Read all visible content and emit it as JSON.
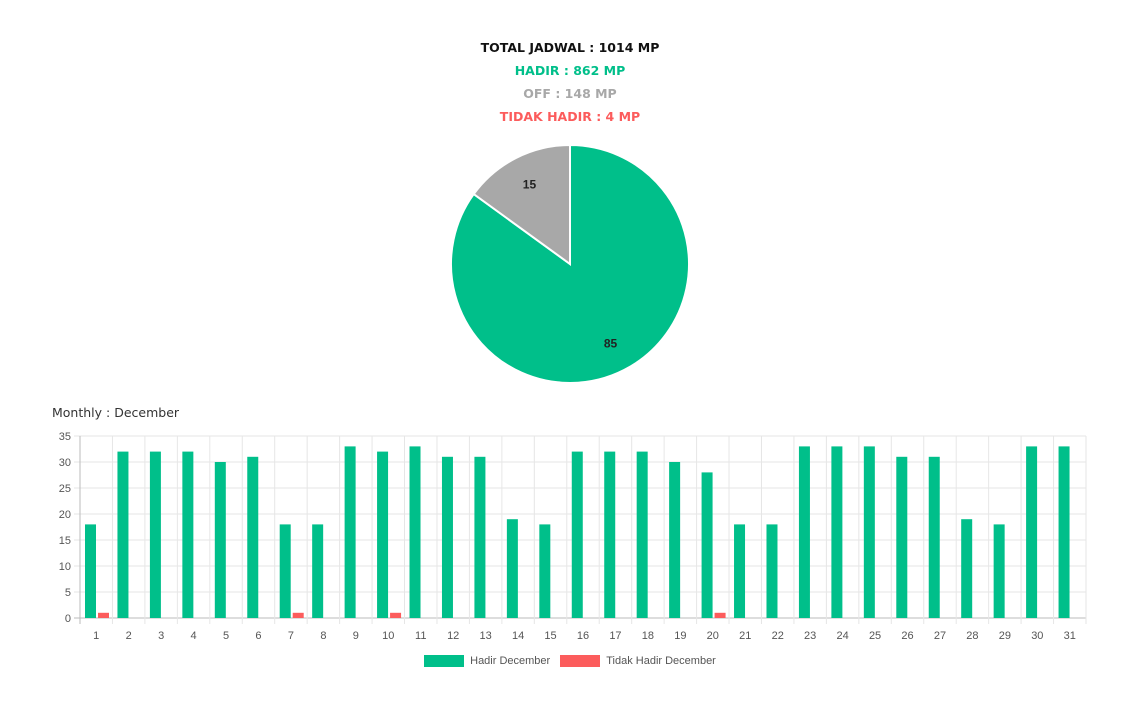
{
  "summary": {
    "total": "TOTAL JADWAL : 1014 MP",
    "hadir": "HADIR : 862 MP",
    "off": "OFF : 148 MP",
    "tidak_hadir": "TIDAK HADIR : 4 MP"
  },
  "colors": {
    "hadir": "#00bf8a",
    "off": "#a8a8a8",
    "tidak_hadir": "#fc5c5c",
    "grid": "#e6e6e6"
  },
  "monthly_title": "Monthly : December",
  "chart_data": [
    {
      "type": "pie",
      "slices": [
        {
          "label": "85",
          "value": 85,
          "color": "#00bf8a"
        },
        {
          "label": "15",
          "value": 15,
          "color": "#a8a8a8"
        }
      ]
    },
    {
      "type": "bar",
      "categories": [
        "1",
        "2",
        "3",
        "4",
        "5",
        "6",
        "7",
        "8",
        "9",
        "10",
        "11",
        "12",
        "13",
        "14",
        "15",
        "16",
        "17",
        "18",
        "19",
        "20",
        "21",
        "22",
        "23",
        "24",
        "25",
        "26",
        "27",
        "28",
        "29",
        "30",
        "31"
      ],
      "series": [
        {
          "name": "Hadir December",
          "color": "#00bf8a",
          "values": [
            18,
            32,
            32,
            32,
            30,
            31,
            18,
            18,
            33,
            32,
            33,
            31,
            31,
            19,
            18,
            32,
            32,
            32,
            30,
            28,
            18,
            18,
            33,
            33,
            33,
            31,
            31,
            19,
            18,
            33,
            33
          ]
        },
        {
          "name": "Tidak Hadir December",
          "color": "#fc5c5c",
          "values": [
            1,
            0,
            0,
            0,
            0,
            0,
            1,
            0,
            0,
            1,
            0,
            0,
            0,
            0,
            0,
            0,
            0,
            0,
            0,
            1,
            0,
            0,
            0,
            0,
            0,
            0,
            0,
            0,
            0,
            0,
            0
          ]
        }
      ],
      "yticks": [
        0,
        5,
        10,
        15,
        20,
        25,
        30,
        35
      ],
      "ylim": [
        0,
        35
      ],
      "grid": true,
      "legend": "bottom"
    }
  ]
}
